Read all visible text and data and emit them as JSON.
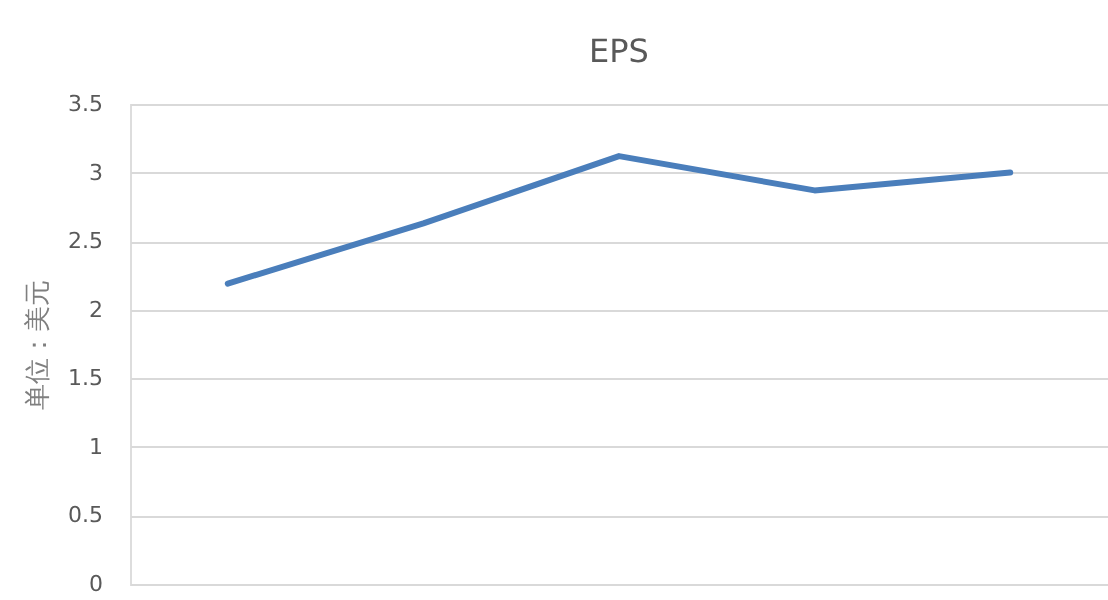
{
  "chart_data": {
    "type": "line",
    "title": "EPS",
    "ylabel": "单位：美元",
    "categories": [
      null,
      null,
      null,
      null,
      null
    ],
    "series": [
      {
        "color": "#4a7ebb",
        "values": [
          2.19,
          2.63,
          3.12,
          2.87,
          3.0
        ]
      }
    ],
    "ylim": [
      0,
      3.5
    ],
    "yticks": [
      0,
      0.5,
      1,
      1.5,
      2,
      2.5,
      3,
      3.5
    ],
    "grid": "y",
    "tick_labels": "y",
    "marker": "none",
    "line_style": "solid"
  }
}
